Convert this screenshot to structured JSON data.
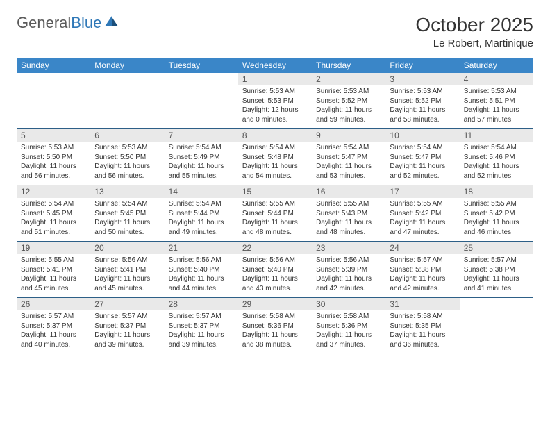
{
  "logo": {
    "word1": "General",
    "word2": "Blue"
  },
  "title": "October 2025",
  "location": "Le Robert, Martinique",
  "colors": {
    "header_bg": "#3a86c8",
    "header_text": "#ffffff",
    "daynum_bg": "#e9e9e9",
    "week_border": "#2d5f87",
    "logo_gray": "#5a5a5a",
    "logo_blue": "#2f78b7"
  },
  "weekdays": [
    "Sunday",
    "Monday",
    "Tuesday",
    "Wednesday",
    "Thursday",
    "Friday",
    "Saturday"
  ],
  "weeks": [
    [
      null,
      null,
      null,
      {
        "n": "1",
        "sunrise": "5:53 AM",
        "sunset": "5:53 PM",
        "daylight": "12 hours and 0 minutes."
      },
      {
        "n": "2",
        "sunrise": "5:53 AM",
        "sunset": "5:52 PM",
        "daylight": "11 hours and 59 minutes."
      },
      {
        "n": "3",
        "sunrise": "5:53 AM",
        "sunset": "5:52 PM",
        "daylight": "11 hours and 58 minutes."
      },
      {
        "n": "4",
        "sunrise": "5:53 AM",
        "sunset": "5:51 PM",
        "daylight": "11 hours and 57 minutes."
      }
    ],
    [
      {
        "n": "5",
        "sunrise": "5:53 AM",
        "sunset": "5:50 PM",
        "daylight": "11 hours and 56 minutes."
      },
      {
        "n": "6",
        "sunrise": "5:53 AM",
        "sunset": "5:50 PM",
        "daylight": "11 hours and 56 minutes."
      },
      {
        "n": "7",
        "sunrise": "5:54 AM",
        "sunset": "5:49 PM",
        "daylight": "11 hours and 55 minutes."
      },
      {
        "n": "8",
        "sunrise": "5:54 AM",
        "sunset": "5:48 PM",
        "daylight": "11 hours and 54 minutes."
      },
      {
        "n": "9",
        "sunrise": "5:54 AM",
        "sunset": "5:47 PM",
        "daylight": "11 hours and 53 minutes."
      },
      {
        "n": "10",
        "sunrise": "5:54 AM",
        "sunset": "5:47 PM",
        "daylight": "11 hours and 52 minutes."
      },
      {
        "n": "11",
        "sunrise": "5:54 AM",
        "sunset": "5:46 PM",
        "daylight": "11 hours and 52 minutes."
      }
    ],
    [
      {
        "n": "12",
        "sunrise": "5:54 AM",
        "sunset": "5:45 PM",
        "daylight": "11 hours and 51 minutes."
      },
      {
        "n": "13",
        "sunrise": "5:54 AM",
        "sunset": "5:45 PM",
        "daylight": "11 hours and 50 minutes."
      },
      {
        "n": "14",
        "sunrise": "5:54 AM",
        "sunset": "5:44 PM",
        "daylight": "11 hours and 49 minutes."
      },
      {
        "n": "15",
        "sunrise": "5:55 AM",
        "sunset": "5:44 PM",
        "daylight": "11 hours and 48 minutes."
      },
      {
        "n": "16",
        "sunrise": "5:55 AM",
        "sunset": "5:43 PM",
        "daylight": "11 hours and 48 minutes."
      },
      {
        "n": "17",
        "sunrise": "5:55 AM",
        "sunset": "5:42 PM",
        "daylight": "11 hours and 47 minutes."
      },
      {
        "n": "18",
        "sunrise": "5:55 AM",
        "sunset": "5:42 PM",
        "daylight": "11 hours and 46 minutes."
      }
    ],
    [
      {
        "n": "19",
        "sunrise": "5:55 AM",
        "sunset": "5:41 PM",
        "daylight": "11 hours and 45 minutes."
      },
      {
        "n": "20",
        "sunrise": "5:56 AM",
        "sunset": "5:41 PM",
        "daylight": "11 hours and 45 minutes."
      },
      {
        "n": "21",
        "sunrise": "5:56 AM",
        "sunset": "5:40 PM",
        "daylight": "11 hours and 44 minutes."
      },
      {
        "n": "22",
        "sunrise": "5:56 AM",
        "sunset": "5:40 PM",
        "daylight": "11 hours and 43 minutes."
      },
      {
        "n": "23",
        "sunrise": "5:56 AM",
        "sunset": "5:39 PM",
        "daylight": "11 hours and 42 minutes."
      },
      {
        "n": "24",
        "sunrise": "5:57 AM",
        "sunset": "5:38 PM",
        "daylight": "11 hours and 42 minutes."
      },
      {
        "n": "25",
        "sunrise": "5:57 AM",
        "sunset": "5:38 PM",
        "daylight": "11 hours and 41 minutes."
      }
    ],
    [
      {
        "n": "26",
        "sunrise": "5:57 AM",
        "sunset": "5:37 PM",
        "daylight": "11 hours and 40 minutes."
      },
      {
        "n": "27",
        "sunrise": "5:57 AM",
        "sunset": "5:37 PM",
        "daylight": "11 hours and 39 minutes."
      },
      {
        "n": "28",
        "sunrise": "5:57 AM",
        "sunset": "5:37 PM",
        "daylight": "11 hours and 39 minutes."
      },
      {
        "n": "29",
        "sunrise": "5:58 AM",
        "sunset": "5:36 PM",
        "daylight": "11 hours and 38 minutes."
      },
      {
        "n": "30",
        "sunrise": "5:58 AM",
        "sunset": "5:36 PM",
        "daylight": "11 hours and 37 minutes."
      },
      {
        "n": "31",
        "sunrise": "5:58 AM",
        "sunset": "5:35 PM",
        "daylight": "11 hours and 36 minutes."
      },
      null
    ]
  ],
  "labels": {
    "sunrise": "Sunrise:",
    "sunset": "Sunset:",
    "daylight": "Daylight:"
  }
}
